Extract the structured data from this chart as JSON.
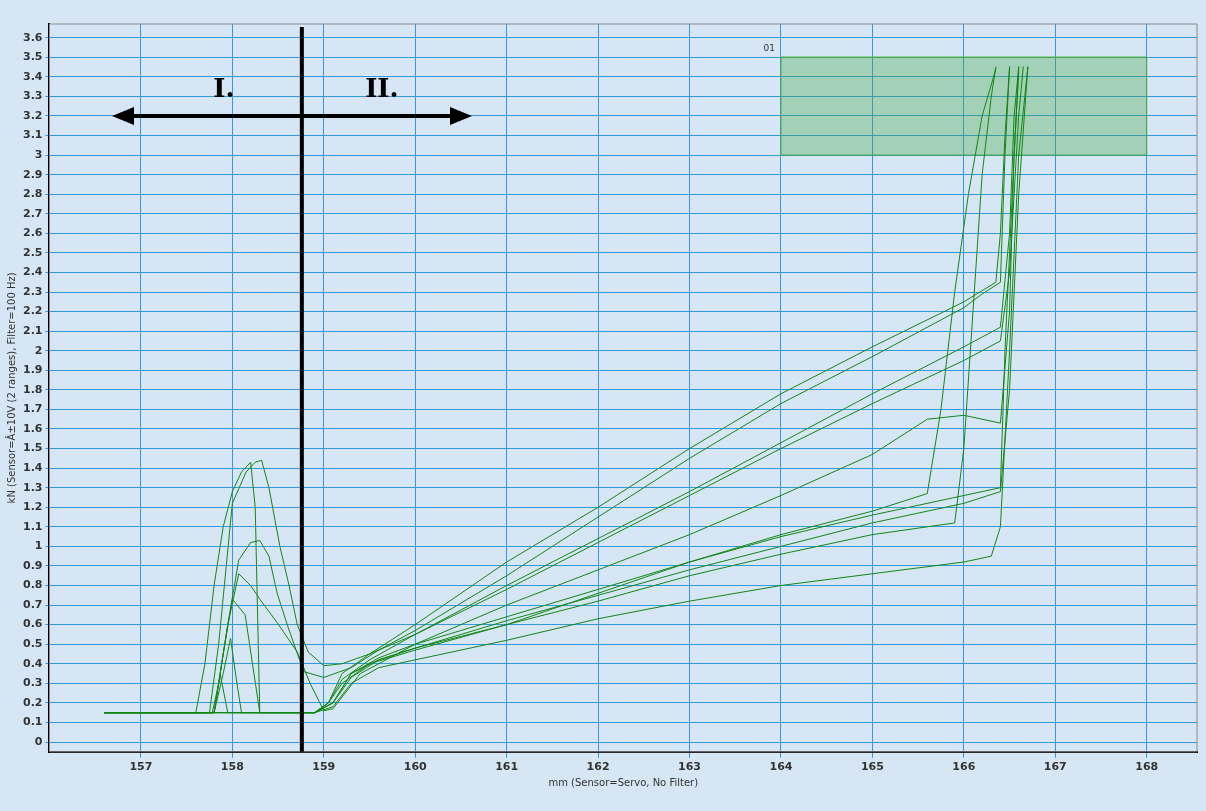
{
  "chart_data": {
    "type": "line",
    "xlabel": "mm (Sensor=Servo, No Filter)",
    "ylabel": "kN (Sensor=Â±10V (2 ranges), Filter=100 Hz)",
    "xlim": [
      156,
      168.55
    ],
    "ylim": [
      -0.05,
      3.67
    ],
    "xticks": [
      157,
      158,
      159,
      160,
      161,
      162,
      163,
      164,
      165,
      166,
      167,
      168
    ],
    "yticks": [
      0,
      0.1,
      0.2,
      0.3,
      0.4,
      0.5,
      0.6,
      0.7,
      0.8,
      0.9,
      1,
      1.1,
      1.2,
      1.3,
      1.4,
      1.5,
      1.6,
      1.7,
      1.8,
      1.9,
      2,
      2.1,
      2.2,
      2.3,
      2.4,
      2.5,
      2.6,
      2.7,
      2.8,
      2.9,
      3,
      3.1,
      3.2,
      3.3,
      3.4,
      3.5,
      3.6
    ],
    "grid": true,
    "legend": false,
    "marker": "none",
    "line_style": "solid",
    "annotations": [
      "I.",
      "II."
    ],
    "ref_lines": [
      {
        "axis": "x",
        "value": 158.76,
        "color": "#000000"
      }
    ],
    "series": [
      {
        "color": "#118811",
        "x": [
          156.6,
          157.6,
          157.7,
          157.8,
          157.9,
          158.0,
          158.1,
          158.2,
          158.25,
          158.3,
          158.9,
          159.1,
          159.3,
          159.6,
          160,
          161,
          162,
          163,
          164,
          165,
          166,
          166.4,
          166.45,
          166.55,
          166.6
        ],
        "values": [
          0.15,
          0.15,
          0.4,
          0.8,
          1.1,
          1.28,
          1.38,
          1.43,
          1.2,
          0.15,
          0.15,
          0.2,
          0.35,
          0.43,
          0.5,
          0.64,
          0.78,
          0.92,
          1.05,
          1.16,
          1.26,
          1.3,
          2.0,
          3.0,
          3.45
        ]
      },
      {
        "color": "#118811",
        "x": [
          156.6,
          157.75,
          157.85,
          158.0,
          158.15,
          158.25,
          158.32,
          158.4,
          158.52,
          158.62,
          158.71,
          158.83,
          159.0,
          159.2,
          159.5,
          160,
          161,
          162,
          163,
          164,
          165,
          166,
          166.4,
          166.5,
          166.6,
          166.65
        ],
        "values": [
          0.15,
          0.15,
          0.5,
          1.22,
          1.38,
          1.43,
          1.44,
          1.3,
          1.0,
          0.8,
          0.6,
          0.46,
          0.39,
          0.4,
          0.45,
          0.55,
          0.78,
          1.02,
          1.26,
          1.5,
          1.73,
          1.95,
          2.05,
          2.4,
          3.2,
          3.45
        ]
      },
      {
        "color": "#118811",
        "x": [
          156.6,
          157.8,
          157.95,
          158.07,
          158.2,
          158.3,
          158.4,
          158.49,
          158.6,
          158.78,
          159.0,
          159.3,
          159.6,
          160,
          161,
          162,
          163,
          164,
          165,
          166,
          166.2,
          166.4,
          166.45,
          166.5
        ],
        "values": [
          0.15,
          0.15,
          0.6,
          0.93,
          1.02,
          1.03,
          0.95,
          0.76,
          0.6,
          0.36,
          0.33,
          0.38,
          0.47,
          0.57,
          0.85,
          1.15,
          1.45,
          1.73,
          1.97,
          2.22,
          2.29,
          2.35,
          3.0,
          3.45
        ]
      },
      {
        "color": "#118811",
        "x": [
          156.6,
          157.8,
          157.95,
          158.07,
          158.2,
          158.3,
          158.49,
          158.71,
          158.85,
          159.0,
          159.1,
          159.4,
          160,
          161,
          162,
          163,
          164,
          165,
          165.6,
          166.0,
          166.4,
          166.5,
          166.55,
          166.6
        ],
        "values": [
          0.15,
          0.15,
          0.6,
          0.86,
          0.8,
          0.73,
          0.61,
          0.46,
          0.3,
          0.16,
          0.17,
          0.35,
          0.5,
          0.7,
          0.88,
          1.06,
          1.26,
          1.47,
          1.65,
          1.67,
          1.63,
          2.2,
          3.0,
          3.43
        ]
      },
      {
        "color": "#118811",
        "x": [
          156.6,
          157.8,
          157.9,
          158.0,
          158.14,
          158.3,
          158.9,
          159.1,
          159.3,
          159.6,
          160,
          161,
          162,
          163,
          164,
          165,
          166,
          166.3,
          166.4,
          166.5,
          166.6,
          166.7
        ],
        "values": [
          0.15,
          0.15,
          0.45,
          0.73,
          0.65,
          0.15,
          0.15,
          0.18,
          0.3,
          0.38,
          0.42,
          0.52,
          0.63,
          0.72,
          0.8,
          0.86,
          0.92,
          0.95,
          1.1,
          2.0,
          3.0,
          3.45
        ]
      },
      {
        "color": "#118811",
        "x": [
          156.6,
          157.8,
          157.9,
          157.98,
          158.05,
          158.1,
          158.9,
          159.1,
          159.3,
          159.6,
          160,
          161,
          162,
          163,
          164,
          165,
          165.6,
          165.75,
          165.9,
          166.05,
          166.2,
          166.35
        ],
        "values": [
          0.15,
          0.15,
          0.35,
          0.53,
          0.3,
          0.15,
          0.15,
          0.2,
          0.33,
          0.42,
          0.48,
          0.6,
          0.76,
          0.92,
          1.06,
          1.18,
          1.27,
          1.7,
          2.3,
          2.8,
          3.2,
          3.44
        ]
      },
      {
        "color": "#118811",
        "x": [
          156.6,
          157.78,
          157.87,
          157.95,
          158.9,
          159.1,
          159.3,
          159.6,
          160,
          161,
          162,
          163,
          164,
          165,
          166,
          166.4,
          166.5,
          166.6,
          166.7
        ],
        "values": [
          0.15,
          0.15,
          0.34,
          0.15,
          0.15,
          0.2,
          0.35,
          0.42,
          0.48,
          0.62,
          0.75,
          0.88,
          1.0,
          1.12,
          1.22,
          1.28,
          1.8,
          2.8,
          3.45
        ]
      },
      {
        "color": "#118811",
        "x": [
          156.6,
          158.9,
          159.05,
          159.2,
          159.5,
          160,
          161,
          162,
          163,
          164,
          165,
          166,
          166.35,
          166.4,
          166.45,
          166.5
        ],
        "values": [
          0.15,
          0.15,
          0.2,
          0.35,
          0.45,
          0.6,
          0.92,
          1.2,
          1.5,
          1.78,
          2.02,
          2.25,
          2.35,
          2.6,
          3.1,
          3.45
        ]
      },
      {
        "color": "#118811",
        "x": [
          156.6,
          158.9,
          159.05,
          159.2,
          159.5,
          160,
          161,
          162,
          163,
          164,
          165,
          165.9,
          166.0,
          166.1,
          166.2,
          166.3,
          166.35
        ],
        "values": [
          0.15,
          0.15,
          0.2,
          0.3,
          0.4,
          0.47,
          0.6,
          0.72,
          0.85,
          0.96,
          1.06,
          1.12,
          1.5,
          2.2,
          2.9,
          3.3,
          3.45
        ]
      },
      {
        "color": "#118811",
        "x": [
          156.6,
          158.9,
          159.05,
          159.2,
          159.5,
          160,
          161,
          162,
          163,
          164,
          165,
          166,
          166.4,
          166.5,
          166.55,
          166.6
        ],
        "values": [
          0.15,
          0.15,
          0.2,
          0.32,
          0.42,
          0.55,
          0.8,
          1.04,
          1.28,
          1.53,
          1.78,
          2.02,
          2.12,
          2.6,
          3.2,
          3.45
        ]
      },
      {
        "type": "line",
        "name": "01",
        "color": "#44aa44",
        "x": [
          164,
          168
        ],
        "values": [
          3.5,
          3.5
        ],
        "lower": [
          3,
          3
        ],
        "upper": [
          3.5,
          3.5
        ]
      }
    ]
  }
}
